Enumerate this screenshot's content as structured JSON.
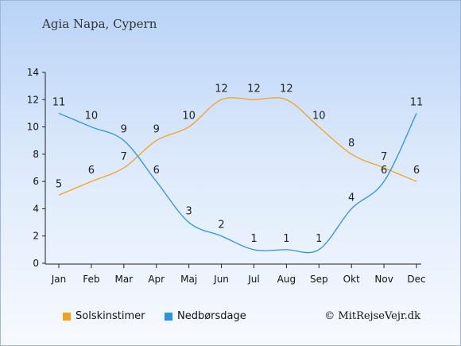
{
  "header": {
    "title": "Agia Napa, Cypern"
  },
  "footer": {
    "credit": "© MitRejseVejr.dk"
  },
  "colors": {
    "sun": "#f4a21e",
    "rain": "#2a93e3"
  },
  "chart_data": {
    "type": "line",
    "categories": [
      "Jan",
      "Feb",
      "Mar",
      "Apr",
      "Maj",
      "Jun",
      "Jul",
      "Aug",
      "Sep",
      "Okt",
      "Nov",
      "Dec"
    ],
    "ylim": [
      0,
      14
    ],
    "yticks": [
      0,
      2,
      4,
      6,
      8,
      10,
      12,
      14
    ],
    "grid": false,
    "legend_position": "bottom-left",
    "series": [
      {
        "name": "Solskinstimer",
        "color": "#f4a21e",
        "values": [
          5,
          6,
          7,
          9,
          10,
          12,
          12,
          12,
          10,
          8,
          7,
          6
        ]
      },
      {
        "name": "Nedbørsdage",
        "color": "#2a93e3",
        "values": [
          11,
          10,
          9,
          6,
          3,
          2,
          1,
          1,
          1,
          4,
          6,
          11
        ]
      }
    ]
  }
}
